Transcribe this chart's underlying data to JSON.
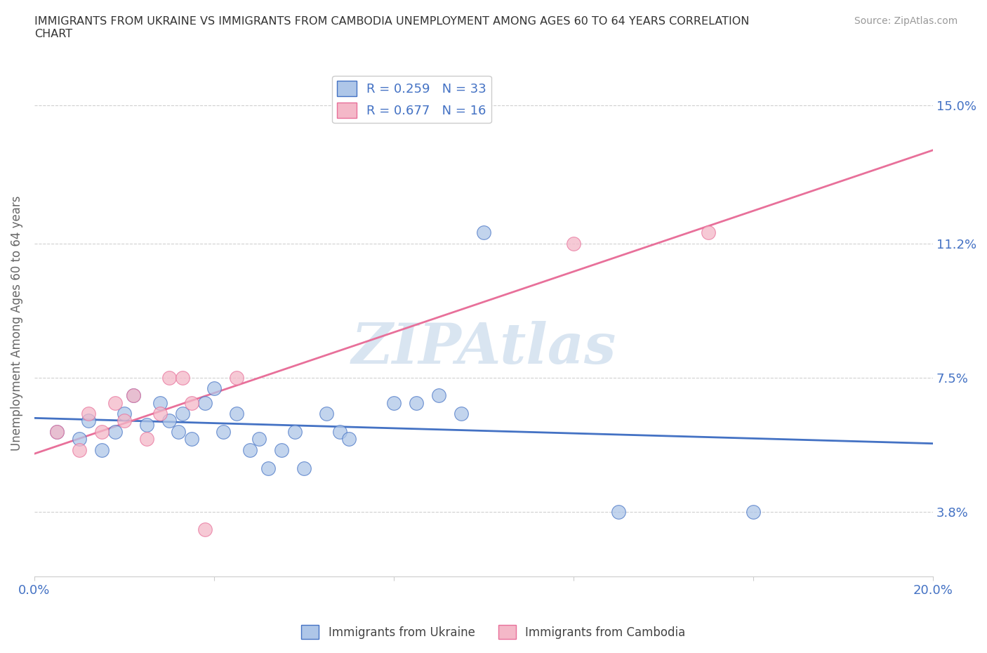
{
  "title": "IMMIGRANTS FROM UKRAINE VS IMMIGRANTS FROM CAMBODIA UNEMPLOYMENT AMONG AGES 60 TO 64 YEARS CORRELATION\nCHART",
  "source": "Source: ZipAtlas.com",
  "ylabel": "Unemployment Among Ages 60 to 64 years",
  "xlim": [
    0.0,
    0.2
  ],
  "ylim": [
    0.02,
    0.16
  ],
  "xticks": [
    0.0,
    0.04,
    0.08,
    0.12,
    0.16,
    0.2
  ],
  "ytick_positions": [
    0.038,
    0.075,
    0.112,
    0.15
  ],
  "ytick_labels": [
    "3.8%",
    "7.5%",
    "11.2%",
    "15.0%"
  ],
  "ukraine_color": "#aec6e8",
  "ukraine_edge_color": "#4472c4",
  "cambodia_color": "#f4b8c8",
  "cambodia_edge_color": "#e8709a",
  "ukraine_line_color": "#4472c4",
  "cambodia_line_color": "#e8709a",
  "ukraine_R": 0.259,
  "ukraine_N": 33,
  "cambodia_R": 0.677,
  "cambodia_N": 16,
  "watermark": "ZIPAtlas",
  "watermark_color": "#c0d4e8",
  "background_color": "#ffffff",
  "ukraine_scatter": [
    [
      0.005,
      0.06
    ],
    [
      0.01,
      0.058
    ],
    [
      0.012,
      0.063
    ],
    [
      0.015,
      0.055
    ],
    [
      0.018,
      0.06
    ],
    [
      0.02,
      0.065
    ],
    [
      0.022,
      0.07
    ],
    [
      0.025,
      0.062
    ],
    [
      0.028,
      0.068
    ],
    [
      0.03,
      0.063
    ],
    [
      0.032,
      0.06
    ],
    [
      0.033,
      0.065
    ],
    [
      0.035,
      0.058
    ],
    [
      0.038,
      0.068
    ],
    [
      0.04,
      0.072
    ],
    [
      0.042,
      0.06
    ],
    [
      0.045,
      0.065
    ],
    [
      0.048,
      0.055
    ],
    [
      0.05,
      0.058
    ],
    [
      0.052,
      0.05
    ],
    [
      0.055,
      0.055
    ],
    [
      0.058,
      0.06
    ],
    [
      0.06,
      0.05
    ],
    [
      0.065,
      0.065
    ],
    [
      0.068,
      0.06
    ],
    [
      0.07,
      0.058
    ],
    [
      0.08,
      0.068
    ],
    [
      0.085,
      0.068
    ],
    [
      0.09,
      0.07
    ],
    [
      0.095,
      0.065
    ],
    [
      0.1,
      0.115
    ],
    [
      0.13,
      0.038
    ],
    [
      0.16,
      0.038
    ]
  ],
  "cambodia_scatter": [
    [
      0.005,
      0.06
    ],
    [
      0.01,
      0.055
    ],
    [
      0.012,
      0.065
    ],
    [
      0.015,
      0.06
    ],
    [
      0.018,
      0.068
    ],
    [
      0.02,
      0.063
    ],
    [
      0.022,
      0.07
    ],
    [
      0.025,
      0.058
    ],
    [
      0.028,
      0.065
    ],
    [
      0.03,
      0.075
    ],
    [
      0.033,
      0.075
    ],
    [
      0.035,
      0.068
    ],
    [
      0.038,
      0.033
    ],
    [
      0.045,
      0.075
    ],
    [
      0.12,
      0.112
    ],
    [
      0.15,
      0.115
    ]
  ]
}
